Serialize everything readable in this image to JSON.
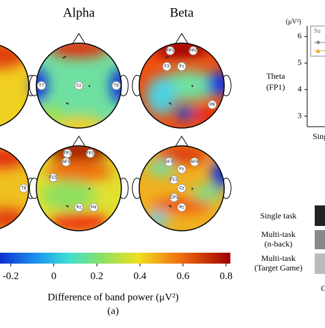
{
  "panel_a": {
    "column_titles": [
      "Alpha",
      "Beta"
    ],
    "maps": [
      {
        "electrodes": [
          "T7",
          "Cz",
          "T8"
        ]
      },
      {
        "electrodes": [
          "FP1",
          "FP2",
          "F3",
          "Fz",
          "P8"
        ]
      },
      {
        "electrodes": [
          "T8"
        ]
      },
      {
        "electrodes": [
          "FP1",
          "FP2",
          "AF3",
          "FC5",
          "Pz",
          "P4"
        ]
      },
      {
        "electrodes": [
          "AF3",
          "AF4",
          "Fz",
          "FC1",
          "Cz",
          "CP1",
          "Pz"
        ]
      }
    ],
    "colorbar": {
      "lim": [
        -0.25,
        0.82
      ],
      "ticks": [
        {
          "value": -0.2,
          "label": "-0.2"
        },
        0,
        0.2,
        0.4,
        0.6,
        0.8
      ],
      "label": "Difference of band power (μV²)"
    },
    "caption": "(a)"
  },
  "panel_b": {
    "unit": "(μV²)",
    "ylabel": [
      "Theta",
      "(FP1)"
    ],
    "ylim": [
      2.6,
      6.4
    ],
    "yticks": [
      3,
      4,
      5,
      6
    ],
    "xlabel": "Sing",
    "legend": "Su",
    "rows": [
      [
        "Single task"
      ],
      [
        "Multi-task",
        "(n-back)"
      ],
      [
        "Multi-task",
        "(Target Game)"
      ]
    ],
    "bottom_tick": "C"
  }
}
